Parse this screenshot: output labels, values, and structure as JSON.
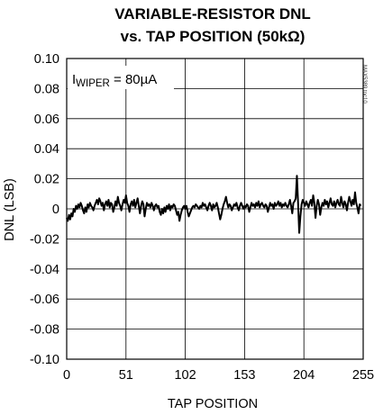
{
  "chart_data": {
    "type": "line",
    "title": "VARIABLE-RESISTOR DNL",
    "subtitle": "vs. TAP POSITION (50kΩ)",
    "xlabel": "TAP POSITION",
    "ylabel": "DNL (LSB)",
    "xlim": [
      0,
      255
    ],
    "ylim": [
      -0.1,
      0.1
    ],
    "x_ticks": [
      "0",
      "51",
      "102",
      "153",
      "204",
      "255"
    ],
    "y_ticks": [
      "0.10",
      "0.08",
      "0.06",
      "0.04",
      "0.02",
      "0",
      "-0.02",
      "-0.04",
      "-0.06",
      "-0.08",
      "-0.10"
    ],
    "grid": true,
    "annotation": {
      "main": "I",
      "sub": "WIPER",
      "rest": " = 80µA"
    },
    "watermark": "MAX5389 toc10",
    "series": [
      {
        "values": [
          -0.006,
          -0.008,
          -0.004,
          -0.007,
          -0.003,
          -0.005,
          0.0,
          -0.002,
          0.002,
          0.0,
          0.003,
          0.001,
          0.004,
          0.002,
          -0.001,
          -0.003,
          0.001,
          -0.002,
          0.003,
          0.001,
          0.004,
          0.002,
          0.001,
          -0.001,
          0.002,
          0.004,
          0.006,
          0.003,
          0.007,
          0.005,
          0.002,
          0.004,
          -0.001,
          0.003,
          0.005,
          0.002,
          0.006,
          0.001,
          0.004,
          0.003,
          -0.002,
          0.001,
          0.005,
          0.002,
          0.008,
          0.004,
          0.002,
          -0.001,
          0.003,
          0.006,
          0.004,
          0.009,
          0.004,
          0.002,
          -0.002,
          0.003,
          0.005,
          0.002,
          0.006,
          0.001,
          0.004,
          0.007,
          0.002,
          -0.003,
          0.002,
          0.005,
          0.003,
          -0.005,
          0.0,
          0.004,
          0.002,
          0.003,
          0.001,
          0.004,
          0.002,
          -0.001,
          0.002,
          0.003,
          0.001,
          0.002,
          -0.002,
          -0.004,
          0.0,
          -0.003,
          0.001,
          -0.002,
          0.002,
          0.0,
          0.003,
          -0.001,
          0.002,
          0.001,
          0.003,
          0.002,
          -0.001,
          -0.004,
          -0.002,
          -0.008,
          -0.004,
          -0.001,
          0.001,
          0.002,
          0.0,
          0.002,
          -0.002,
          -0.005,
          -0.003,
          -0.001,
          0.001,
          0.002,
          0.001,
          0.003,
          0.002,
          0.001,
          0.0,
          0.002,
          0.001,
          0.004,
          0.002,
          0.003,
          0.001,
          -0.001,
          0.002,
          0.004,
          0.002,
          -0.001,
          0.003,
          0.001,
          0.002,
          0.004,
          0.001,
          -0.003,
          -0.007,
          -0.004,
          0.0,
          0.003,
          0.005,
          0.008,
          0.004,
          0.001,
          0.003,
          0.002,
          -0.001,
          0.001,
          0.003,
          0.002,
          0.004,
          0.001,
          -0.001,
          0.002,
          0.004,
          0.002,
          0.0,
          0.002,
          0.001,
          0.003,
          0.002,
          -0.002,
          0.001,
          0.004,
          0.002,
          0.003,
          0.001,
          0.004,
          0.002,
          0.005,
          0.001,
          0.003,
          0.004,
          0.002,
          0.001,
          0.003,
          0.002,
          -0.002,
          0.001,
          0.004,
          0.002,
          0.003,
          0.0,
          0.004,
          0.002,
          0.003,
          0.005,
          0.002,
          0.004,
          0.001,
          0.003,
          0.002,
          0.004,
          0.002,
          0.001,
          0.003,
          0.006,
          0.002,
          -0.003,
          0.004,
          0.005,
          0.007,
          0.022,
          0.004,
          -0.016,
          -0.005,
          0.003,
          0.006,
          0.004,
          0.002,
          0.005,
          0.003,
          0.001,
          0.004,
          0.006,
          0.002,
          0.009,
          0.004,
          -0.006,
          0.002,
          0.006,
          0.003,
          -0.004,
          0.001,
          0.004,
          0.002,
          0.006,
          0.003,
          0.005,
          0.001,
          0.004,
          0.007,
          0.003,
          0.002,
          0.005,
          0.001,
          0.004,
          0.006,
          0.003,
          0.002,
          0.008,
          0.004,
          0.001,
          0.005,
          0.003,
          -0.001,
          0.004,
          0.008,
          0.005,
          0.002,
          0.006,
          0.003,
          0.011,
          0.004,
          0.001,
          -0.003,
          0.003,
          0.002
        ],
        "color": "#000000"
      }
    ]
  }
}
